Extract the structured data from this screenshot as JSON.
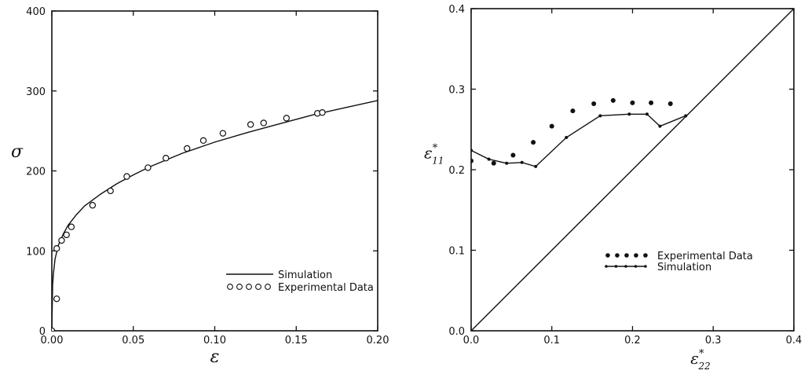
{
  "chart_data": [
    {
      "type": "line",
      "title": "",
      "xlabel": "ε",
      "ylabel": "σ",
      "xlim": [
        0,
        0.2
      ],
      "ylim": [
        0,
        400
      ],
      "xticks": [
        "0.00",
        "0.05",
        "0.10",
        "0.15",
        "0.20"
      ],
      "yticks": [
        "0",
        "100",
        "200",
        "300",
        "400"
      ],
      "grid": false,
      "legend_position": "lower-right",
      "series": [
        {
          "name": "Simulation",
          "style": "solid-line",
          "x": [
            0.0,
            0.0005,
            0.001,
            0.002,
            0.004,
            0.007,
            0.01,
            0.015,
            0.02,
            0.03,
            0.04,
            0.05,
            0.06,
            0.08,
            0.1,
            0.12,
            0.14,
            0.16,
            0.18,
            0.2
          ],
          "y": [
            0,
            58,
            72,
            90,
            107,
            121,
            132,
            145,
            156,
            171,
            184,
            195,
            205,
            222,
            236,
            248,
            259,
            270,
            279,
            288
          ]
        },
        {
          "name": "Experimental Data",
          "style": "open-circle",
          "x": [
            0.0,
            0.003,
            0.003,
            0.006,
            0.009,
            0.012,
            0.025,
            0.036,
            0.046,
            0.059,
            0.07,
            0.083,
            0.093,
            0.105,
            0.122,
            0.13,
            0.144,
            0.163,
            0.166
          ],
          "y": [
            0,
            40,
            103,
            113,
            120,
            130,
            157,
            175,
            193,
            204,
            216,
            228,
            238,
            247,
            258,
            260,
            266,
            272,
            273
          ]
        }
      ]
    },
    {
      "type": "line",
      "title": "",
      "xlabel": "ε*22",
      "ylabel": "ε*11",
      "xlim": [
        0,
        0.4
      ],
      "ylim": [
        0,
        0.4
      ],
      "xticks": [
        "0.0",
        "0.1",
        "0.2",
        "0.3",
        "0.4"
      ],
      "yticks": [
        "0.0",
        "0.1",
        "0.2",
        "0.3",
        "0.4"
      ],
      "grid": false,
      "legend_position": "lower-right",
      "series": [
        {
          "name": "Experimental Data",
          "style": "filled-dot",
          "x": [
            0.0,
            0.028,
            0.052,
            0.077,
            0.1,
            0.126,
            0.152,
            0.176,
            0.2,
            0.223,
            0.247
          ],
          "y": [
            0.211,
            0.208,
            0.218,
            0.234,
            0.254,
            0.273,
            0.282,
            0.286,
            0.283,
            0.283,
            0.282
          ]
        },
        {
          "name": "Simulation",
          "style": "line-with-markers",
          "x": [
            0.0,
            0.022,
            0.044,
            0.063,
            0.08,
            0.118,
            0.16,
            0.196,
            0.218,
            0.234,
            0.266
          ],
          "y": [
            0.224,
            0.213,
            0.208,
            0.209,
            0.204,
            0.24,
            0.267,
            0.269,
            0.269,
            0.254,
            0.267
          ]
        },
        {
          "style": "solid-line",
          "x": [
            0,
            0.4
          ],
          "y": [
            0,
            0.4
          ]
        }
      ]
    }
  ]
}
